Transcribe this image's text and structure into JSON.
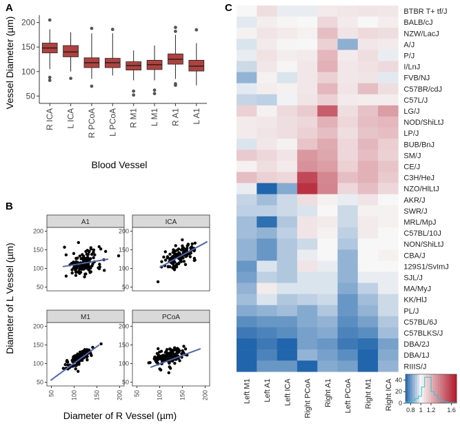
{
  "panel_labels": {
    "a": "A",
    "b": "B",
    "c": "C"
  },
  "chart_data": [
    {
      "id": "A",
      "type": "boxplot",
      "ylabel": "Vessel Diameter (µm)",
      "xlabel": "Blood Vessel",
      "ylim": [
        35,
        215
      ],
      "yticks": [
        50,
        100,
        150,
        200
      ],
      "categories": [
        "R ICA",
        "L ICA",
        "R PCoA",
        "L PCoA",
        "R M1",
        "L M1",
        "R A1",
        "L A1"
      ],
      "boxes": [
        {
          "q1": 138,
          "median": 148,
          "q3": 158,
          "whisker_low": 105,
          "whisker_high": 186,
          "outliers": [
            205,
            88,
            82
          ]
        },
        {
          "q1": 130,
          "median": 140,
          "q3": 153,
          "whisker_low": 100,
          "whisker_high": 180,
          "outliers": [
            86
          ]
        },
        {
          "q1": 108,
          "median": 118,
          "q3": 128,
          "whisker_low": 85,
          "whisker_high": 178,
          "outliers": [
            188,
            70
          ]
        },
        {
          "q1": 108,
          "median": 118,
          "q3": 127,
          "whisker_low": 92,
          "whisker_high": 178,
          "outliers": [
            186
          ]
        },
        {
          "q1": 103,
          "median": 112,
          "q3": 120,
          "whisker_low": 82,
          "whisker_high": 143,
          "outliers": [
            60,
            52
          ]
        },
        {
          "q1": 104,
          "median": 114,
          "q3": 123,
          "whisker_low": 82,
          "whisker_high": 153,
          "outliers": [
            62,
            55
          ]
        },
        {
          "q1": 115,
          "median": 125,
          "q3": 136,
          "whisker_low": 85,
          "whisker_high": 175,
          "outliers": [
            190,
            182,
            75,
            72
          ]
        },
        {
          "q1": 101,
          "median": 111,
          "q3": 123,
          "whisker_low": 72,
          "whisker_high": 158,
          "outliers": [
            185
          ]
        }
      ],
      "box_color": "#b0413e"
    },
    {
      "id": "B",
      "type": "scatter",
      "xlabel": "Diameter of R Vessel (µm)",
      "ylabel": "Diameter of L Vessel (µm)",
      "xlim": [
        40,
        210
      ],
      "ylim": [
        40,
        210
      ],
      "ticks": [
        50,
        100,
        150,
        200
      ],
      "facets": [
        {
          "name": "A1",
          "fit": [
            [
              75,
              105
            ],
            [
              175,
              125
            ]
          ],
          "cx": 120,
          "cy": 113,
          "sx": 20,
          "sy": 18,
          "r": 0.2,
          "n": 130
        },
        {
          "name": "ICA",
          "fit": [
            [
              100,
              103
            ],
            [
              205,
              172
            ]
          ],
          "cx": 145,
          "cy": 135,
          "sx": 18,
          "sy": 16,
          "r": 0.6,
          "n": 130
        },
        {
          "name": "M1",
          "fit": [
            [
              48,
              55
            ],
            [
              155,
              150
            ]
          ],
          "cx": 112,
          "cy": 114,
          "sx": 15,
          "sy": 15,
          "r": 0.85,
          "n": 130
        },
        {
          "name": "PCoA",
          "fit": [
            [
              80,
              90
            ],
            [
              190,
              140
            ]
          ],
          "cx": 120,
          "cy": 118,
          "sx": 18,
          "sy": 15,
          "r": 0.45,
          "n": 130
        }
      ],
      "point_color": "#000000",
      "fit_color": "#4a67b3"
    },
    {
      "id": "C",
      "type": "heatmap",
      "columns": [
        "Left M1",
        "Left A1",
        "Left ICA",
        "Right PCoA",
        "Right A1",
        "Left PCoA",
        "Right M1",
        "Right ICA"
      ],
      "rows": [
        "BTBR T+ tf/J",
        "BALB/cJ",
        "NZW/LacJ",
        "A/J",
        "P/J",
        "I/LnJ",
        "FVB/NJ",
        "C57BR/cdJ",
        "C57L/J",
        "LG/J",
        "NOD/ShiLtJ",
        "LP/J",
        "BUB/BnJ",
        "SM/J",
        "CE/J",
        "C3H/HeJ",
        "NZO/HlLtJ",
        "AKR/J",
        "SWR/J",
        "MRL/MpJ",
        "C57BL/10J",
        "NON/ShiLtJ",
        "CBA/J",
        "129S1/SvImJ",
        "SJL/J",
        "MA/MyJ",
        "KK/HlJ",
        "PL/J",
        "C57BL/6J",
        "C57BLKS/J",
        "DBA/2J",
        "DBA/1J",
        "RIIIS/J"
      ],
      "values": [
        [
          1.0,
          1.08,
          0.98,
          0.98,
          1.04,
          1.05,
          1.06,
          1.05
        ],
        [
          0.97,
          1.03,
          1.01,
          1.0,
          1.1,
          1.04,
          1.0,
          1.03
        ],
        [
          1.02,
          1.06,
          1.04,
          1.02,
          1.18,
          1.06,
          1.09,
          1.08
        ],
        [
          0.96,
          1.04,
          1.01,
          1.0,
          1.12,
          0.85,
          1.05,
          1.04
        ],
        [
          0.98,
          1.07,
          1.03,
          1.04,
          1.2,
          1.04,
          1.08,
          0.98
        ],
        [
          0.94,
          1.05,
          1.01,
          1.05,
          1.22,
          1.05,
          1.07,
          1.09
        ],
        [
          0.86,
          1.02,
          0.96,
          1.05,
          1.12,
          1.05,
          1.06,
          0.97
        ],
        [
          0.97,
          1.03,
          1.02,
          1.05,
          1.2,
          1.06,
          1.18,
          1.08
        ],
        [
          0.93,
          0.92,
          0.99,
          1.06,
          1.12,
          1.04,
          1.03,
          1.03
        ],
        [
          1.12,
          1.02,
          1.09,
          1.14,
          1.48,
          1.08,
          1.17,
          1.28
        ],
        [
          1.04,
          1.05,
          1.08,
          1.1,
          1.22,
          1.1,
          1.18,
          1.2
        ],
        [
          1.04,
          1.06,
          1.08,
          1.12,
          1.18,
          1.08,
          1.16,
          1.18
        ],
        [
          0.96,
          1.05,
          1.02,
          1.16,
          1.24,
          1.1,
          1.2,
          1.13
        ],
        [
          1.14,
          1.1,
          1.06,
          1.3,
          1.25,
          1.1,
          1.18,
          1.12
        ],
        [
          1.02,
          1.08,
          1.04,
          1.32,
          1.28,
          1.12,
          1.22,
          1.16
        ],
        [
          1.18,
          1.12,
          1.1,
          1.55,
          1.35,
          1.18,
          1.22,
          1.14
        ],
        [
          0.98,
          0.7,
          0.84,
          1.62,
          1.36,
          1.1,
          1.18,
          1.1
        ],
        [
          0.93,
          0.88,
          0.94,
          1.08,
          1.02,
          0.98,
          1.06,
          1.0
        ],
        [
          0.92,
          0.92,
          0.94,
          0.96,
          1.0,
          0.94,
          1.02,
          1.02
        ],
        [
          0.88,
          0.72,
          0.9,
          1.06,
          1.04,
          0.94,
          1.04,
          1.02
        ],
        [
          0.88,
          0.86,
          0.92,
          1.06,
          1.02,
          0.92,
          1.04,
          1.0
        ],
        [
          0.86,
          0.8,
          0.9,
          0.94,
          1.0,
          0.9,
          1.0,
          1.0
        ],
        [
          0.86,
          0.8,
          0.9,
          0.98,
          1.0,
          0.86,
          1.0,
          1.02
        ],
        [
          0.8,
          0.96,
          0.9,
          1.06,
          0.98,
          0.86,
          1.0,
          1.0
        ],
        [
          0.82,
          0.92,
          0.9,
          0.96,
          0.96,
          0.86,
          0.98,
          0.98
        ],
        [
          0.86,
          1.04,
          0.96,
          0.96,
          0.96,
          0.84,
          0.92,
          0.98
        ],
        [
          0.88,
          0.96,
          0.9,
          0.92,
          0.94,
          0.8,
          0.88,
          0.94
        ],
        [
          0.84,
          0.86,
          0.88,
          0.84,
          0.9,
          0.8,
          0.86,
          0.94
        ],
        [
          0.78,
          0.8,
          0.8,
          0.84,
          0.86,
          0.78,
          0.82,
          0.9
        ],
        [
          0.74,
          0.76,
          0.78,
          0.82,
          0.84,
          0.76,
          0.78,
          0.88
        ],
        [
          0.66,
          0.74,
          0.68,
          0.82,
          0.8,
          0.74,
          0.72,
          0.82
        ],
        [
          0.64,
          0.76,
          0.7,
          0.86,
          0.82,
          0.78,
          0.7,
          0.84
        ],
        [
          0.62,
          0.8,
          0.8,
          0.7,
          0.84,
          0.82,
          0.6,
          0.86
        ]
      ],
      "colorbar": {
        "min": 0.7,
        "max": 1.7,
        "ticks": [
          0.8,
          1,
          1.2,
          1.6
        ],
        "count_ticks": [
          0,
          20,
          40
        ],
        "low_color": "#2166ac",
        "mid_color": "#f7f7f7",
        "high_color": "#b2182b"
      }
    }
  ]
}
